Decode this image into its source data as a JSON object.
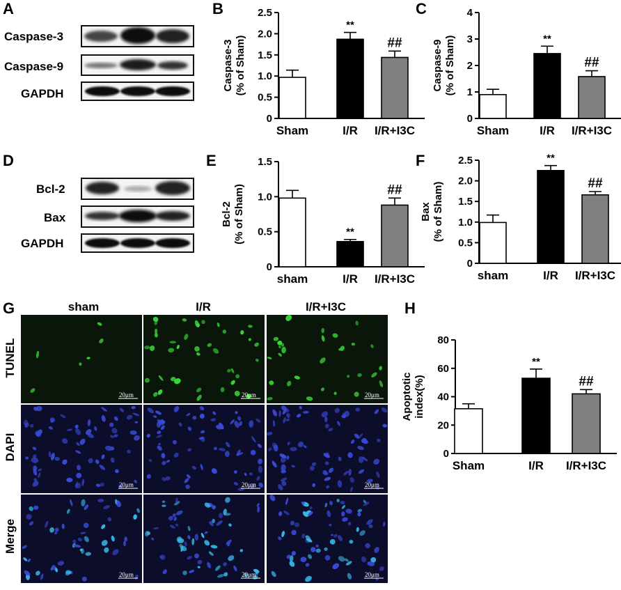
{
  "colors": {
    "sham": "#ffffff",
    "ir": "#000000",
    "ir_i3c": "#808080",
    "tunel_signal": "#3adc3a",
    "dapi_signal": "#3a4bd8",
    "merge_signal": "#3ab8e8"
  },
  "panel_labels": [
    "A",
    "B",
    "C",
    "D",
    "E",
    "F",
    "G",
    "H"
  ],
  "western_blots": [
    {
      "panel": "A",
      "rows": [
        "Caspase-3",
        "Caspase-9",
        "GAPDH"
      ]
    },
    {
      "panel": "D",
      "rows": [
        "Bcl-2",
        "Bax",
        "GAPDH"
      ]
    }
  ],
  "chart_data": [
    {
      "panel": "B",
      "type": "bar",
      "categories": [
        "Sham",
        "I/R",
        "I/R+I3C"
      ],
      "values": [
        0.97,
        1.87,
        1.44
      ],
      "errors": [
        0.17,
        0.16,
        0.15
      ],
      "significance": [
        "",
        "**",
        "##"
      ],
      "ylabel_lines": [
        "Caspase-3",
        "(% of Sham)"
      ],
      "ylim": [
        0,
        2.5
      ],
      "yticks": [
        "0",
        "0.5",
        "1.0",
        "1.5",
        "2.0",
        "2.5"
      ]
    },
    {
      "panel": "C",
      "type": "bar",
      "categories": [
        "Sham",
        "I/R",
        "I/R+I3C"
      ],
      "values": [
        0.9,
        2.45,
        1.58
      ],
      "errors": [
        0.2,
        0.28,
        0.22
      ],
      "significance": [
        "",
        "**",
        "##"
      ],
      "ylabel_lines": [
        "Caspase-9",
        "(% of Sham)"
      ],
      "ylim": [
        0,
        4
      ],
      "yticks": [
        "0",
        "1",
        "2",
        "3",
        "4"
      ]
    },
    {
      "panel": "E",
      "type": "bar",
      "categories": [
        "sham",
        "I/R",
        "I/R+I3C"
      ],
      "values": [
        0.98,
        0.36,
        0.88
      ],
      "errors": [
        0.11,
        0.03,
        0.1
      ],
      "significance": [
        "",
        "**",
        "##"
      ],
      "ylabel_lines": [
        "Bcl-2",
        "(% of Sham)"
      ],
      "ylim": [
        0,
        1.5
      ],
      "yticks": [
        "0",
        "0.5",
        "1.0",
        "1.5"
      ]
    },
    {
      "panel": "F",
      "type": "bar",
      "categories": [
        "sham",
        "I/R",
        "I/R+I3C"
      ],
      "values": [
        0.99,
        2.25,
        1.66
      ],
      "errors": [
        0.18,
        0.12,
        0.08
      ],
      "significance": [
        "",
        "**",
        "##"
      ],
      "ylabel_lines": [
        "Bax",
        "(% of Sham)"
      ],
      "ylim": [
        0,
        2.5
      ],
      "yticks": [
        "0",
        "0.5",
        "1.0",
        "1.5",
        "2.0",
        "2.5"
      ]
    },
    {
      "panel": "H",
      "type": "bar",
      "categories": [
        "Sham",
        "I/R",
        "I/R+I3C"
      ],
      "values": [
        31.5,
        53,
        42
      ],
      "errors": [
        3.5,
        6.5,
        3.0
      ],
      "significance": [
        "",
        "**",
        "##"
      ],
      "ylabel_lines": [
        "Apoptotic",
        "index(%)"
      ],
      "ylim": [
        0,
        80
      ],
      "yticks": [
        "0",
        "20",
        "40",
        "60",
        "80"
      ]
    }
  ],
  "microscopy": {
    "columns": [
      "sham",
      "I/R",
      "I/R+I3C"
    ],
    "rows": [
      "TUNEL",
      "DAPI",
      "Merge"
    ],
    "scale_bar": "20μm"
  }
}
